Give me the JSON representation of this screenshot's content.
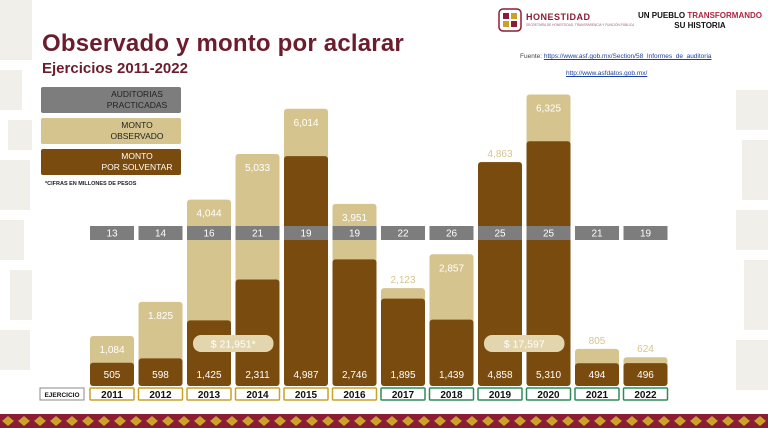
{
  "header": {
    "title": "Observado y monto por aclarar",
    "subtitle": "Ejercicios 2011-2022",
    "logo_name": "HONESTIDAD",
    "logo_tagline": "SECRETARÍA DE HONESTIDAD, TRANSPARENCIA Y FUNCIÓN PÚBLICA",
    "slogan_line1_a": "UN PUEBLO",
    "slogan_line1_b": "TRANSFORMANDO",
    "slogan_line2": "SU HISTORIA",
    "source_label": "Fuente:",
    "source_link1": "https://www.asf.gob.mx/Section/58_Informes_de_auditoria",
    "source_link2": "http://www.asfdatos.gob.mx/"
  },
  "legend": {
    "items": [
      {
        "label_line1": "AUDITORIAS",
        "label_line2": "PRACTICADAS",
        "color": "#7d7d7d"
      },
      {
        "label_line1": "MONTO",
        "label_line2": "OBSERVADO",
        "color": "#d6c48e"
      },
      {
        "label_line1": "MONTO",
        "label_line2": "POR SOLVENTAR",
        "color": "#7a4b0e"
      }
    ],
    "footnote": "*CIFRAS EN MILLONES DE PESOS"
  },
  "colors": {
    "observado": "#d6c48e",
    "por_solventar": "#7a4b0e",
    "auditorias": "#7d7d7d",
    "title": "#6b1d2e",
    "year_border_gold": "#c9a227",
    "year_border_green": "#2e8b57"
  },
  "chart_data": {
    "type": "bar",
    "xlabel": "EJERCICIO",
    "categories": [
      "2011",
      "2012",
      "2013",
      "2014",
      "2015",
      "2016",
      "2017",
      "2018",
      "2019",
      "2020",
      "2021",
      "2022"
    ],
    "series": [
      {
        "name": "MONTO OBSERVADO",
        "values": [
          1084,
          1825,
          4044,
          5033,
          6014,
          3951,
          2123,
          2857,
          4863,
          6325,
          805,
          624
        ],
        "labels": [
          "1,084",
          "1.825",
          "4,044",
          "5,033",
          "6,014",
          "3,951",
          "2,123",
          "2,857",
          "4,863",
          "6,325",
          "805",
          "624"
        ]
      },
      {
        "name": "MONTO POR SOLVENTAR",
        "values": [
          505,
          598,
          1425,
          2311,
          4987,
          2746,
          1895,
          1439,
          4858,
          5310,
          494,
          496
        ],
        "labels": [
          "505",
          "598",
          "1,425",
          "2,311",
          "4,987",
          "2,746",
          "1,895",
          "1,439",
          "4,858",
          "5,310",
          "494",
          "496"
        ]
      },
      {
        "name": "AUDITORIAS PRACTICADAS",
        "values": [
          13,
          14,
          16,
          21,
          19,
          19,
          22,
          26,
          25,
          25,
          21,
          19
        ]
      }
    ],
    "year_border_group": [
      "gold",
      "gold",
      "gold",
      "gold",
      "gold",
      "gold",
      "green",
      "green",
      "green",
      "green",
      "green",
      "green"
    ],
    "period_totals": [
      {
        "label": "$ 21,951*",
        "years": [
          "2013",
          "2014"
        ]
      },
      {
        "label": "$ 17,597",
        "years": [
          "2019",
          "2020"
        ]
      }
    ],
    "ylim": [
      0,
      6400
    ],
    "grid": false
  }
}
